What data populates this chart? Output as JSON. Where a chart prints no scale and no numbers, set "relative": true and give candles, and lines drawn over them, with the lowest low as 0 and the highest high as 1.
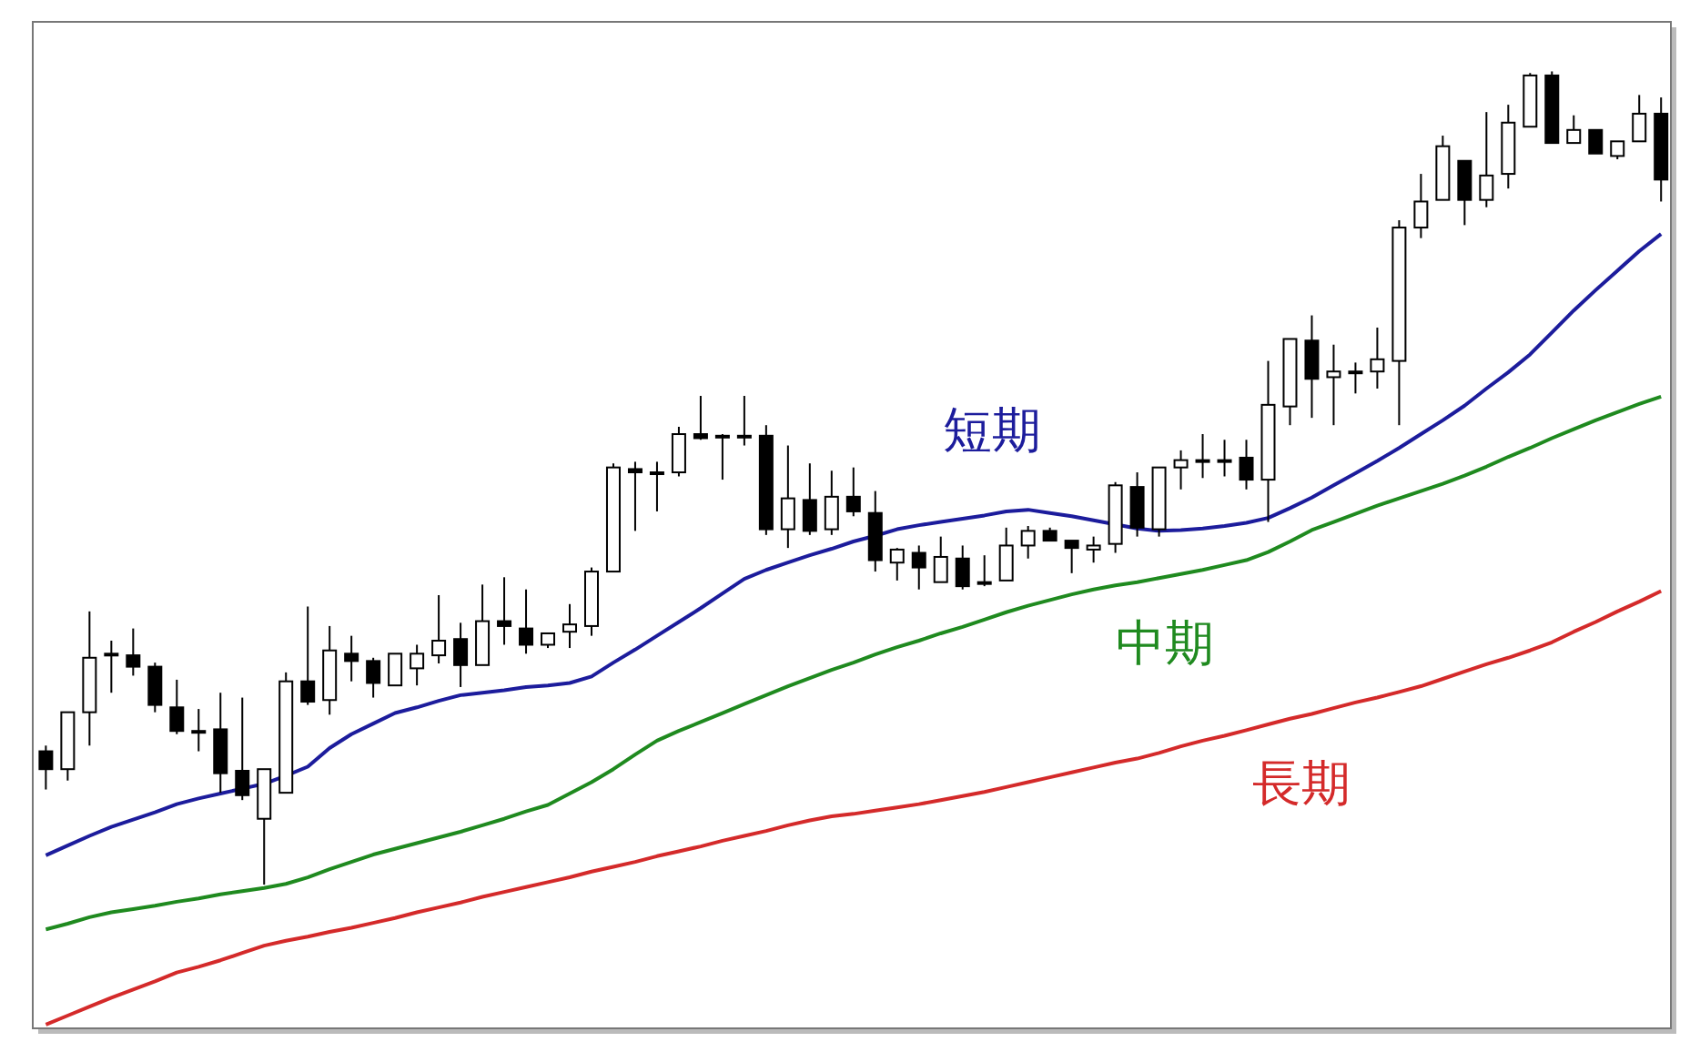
{
  "chart_data": {
    "type": "candlestick",
    "relative": true,
    "categories": [
      null,
      null,
      null,
      null,
      null,
      null,
      null,
      null,
      null,
      null,
      null,
      null,
      null,
      null,
      null,
      null,
      null,
      null,
      null,
      null,
      null,
      null,
      null,
      null,
      null,
      null,
      null,
      null,
      null,
      null,
      null,
      null,
      null,
      null,
      null,
      null,
      null,
      null,
      null,
      null,
      null,
      null,
      null,
      null,
      null,
      null,
      null,
      null,
      null,
      null,
      null,
      null,
      null,
      null,
      null,
      null,
      null,
      null,
      null,
      null,
      null,
      null,
      null,
      null,
      null,
      null,
      null,
      null,
      null,
      null,
      null,
      null,
      null,
      null,
      null
    ],
    "ohlc": [
      [
        0.164,
        0.171,
        0.117,
        0.142
      ],
      [
        0.142,
        0.212,
        0.128,
        0.212
      ],
      [
        0.212,
        0.336,
        0.171,
        0.279
      ],
      [
        0.282,
        0.3,
        0.236,
        0.284
      ],
      [
        0.282,
        0.315,
        0.257,
        0.268
      ],
      [
        0.268,
        0.273,
        0.212,
        0.221
      ],
      [
        0.218,
        0.252,
        0.185,
        0.189
      ],
      [
        0.189,
        0.216,
        0.164,
        0.189
      ],
      [
        0.191,
        0.236,
        0.113,
        0.137
      ],
      [
        0.14,
        0.23,
        0.104,
        0.11
      ],
      [
        0.081,
        0.142,
        0,
        0.142
      ],
      [
        0.113,
        0.261,
        0.113,
        0.25
      ],
      [
        0.25,
        0.342,
        0.221,
        0.225
      ],
      [
        0.227,
        0.318,
        0.209,
        0.288
      ],
      [
        0.284,
        0.306,
        0.25,
        0.275
      ],
      [
        0.275,
        0.279,
        0.23,
        0.248
      ],
      [
        0.245,
        0.284,
        0.245,
        0.284
      ],
      [
        0.266,
        0.295,
        0.245,
        0.284
      ],
      [
        0.282,
        0.356,
        0.272,
        0.3
      ],
      [
        0.302,
        0.322,
        0.243,
        0.27
      ],
      [
        0.27,
        0.369,
        0.27,
        0.324
      ],
      [
        0.324,
        0.378,
        0.295,
        0.318
      ],
      [
        0.315,
        0.363,
        0.284,
        0.295
      ],
      [
        0.295,
        0.309,
        0.291,
        0.309
      ],
      [
        0.311,
        0.345,
        0.291,
        0.32
      ],
      [
        0.318,
        0.39,
        0.306,
        0.385
      ],
      [
        0.385,
        0.518,
        0.385,
        0.513
      ],
      [
        0.511,
        0.52,
        0.435,
        0.507
      ],
      [
        0.507,
        0.52,
        0.459,
        0.507
      ],
      [
        0.507,
        0.563,
        0.502,
        0.554
      ],
      [
        0.554,
        0.601,
        0.547,
        0.549
      ],
      [
        0.552,
        0.554,
        0.498,
        0.552
      ],
      [
        0.552,
        0.601,
        0.54,
        0.552
      ],
      [
        0.552,
        0.565,
        0.43,
        0.437
      ],
      [
        0.437,
        0.54,
        0.414,
        0.475
      ],
      [
        0.473,
        0.518,
        0.43,
        0.435
      ],
      [
        0.437,
        0.509,
        0.43,
        0.477
      ],
      [
        0.477,
        0.513,
        0.453,
        0.459
      ],
      [
        0.457,
        0.484,
        0.385,
        0.399
      ],
      [
        0.396,
        0.414,
        0.374,
        0.412
      ],
      [
        0.408,
        0.417,
        0.363,
        0.39
      ],
      [
        0.372,
        0.428,
        0.372,
        0.403
      ],
      [
        0.401,
        0.417,
        0.363,
        0.367
      ],
      [
        0.372,
        0.405,
        0.367,
        0.372
      ],
      [
        0.374,
        0.439,
        0.374,
        0.417
      ],
      [
        0.417,
        0.441,
        0.401,
        0.435
      ],
      [
        0.435,
        0.439,
        0.423,
        0.423
      ],
      [
        0.423,
        0.423,
        0.383,
        0.414
      ],
      [
        0.412,
        0.428,
        0.396,
        0.417
      ],
      [
        0.419,
        0.495,
        0.408,
        0.491
      ],
      [
        0.489,
        0.507,
        0.428,
        0.439
      ],
      [
        0.437,
        0.513,
        0.428,
        0.513
      ],
      [
        0.513,
        0.534,
        0.486,
        0.522
      ],
      [
        0.522,
        0.554,
        0.5,
        0.522
      ],
      [
        0.522,
        0.547,
        0.502,
        0.522
      ],
      [
        0.525,
        0.547,
        0.486,
        0.498
      ],
      [
        0.498,
        0.644,
        0.446,
        0.59
      ],
      [
        0.588,
        0.671,
        0.565,
        0.671
      ],
      [
        0.669,
        0.7,
        0.574,
        0.622
      ],
      [
        0.624,
        0.664,
        0.565,
        0.631
      ],
      [
        0.631,
        0.642,
        0.604,
        0.631
      ],
      [
        0.631,
        0.685,
        0.61,
        0.646
      ],
      [
        0.644,
        0.817,
        0.565,
        0.808
      ],
      [
        0.808,
        0.874,
        0.795,
        0.84
      ],
      [
        0.842,
        0.921,
        0.842,
        0.908
      ],
      [
        0.89,
        0.89,
        0.811,
        0.842
      ],
      [
        0.842,
        0.95,
        0.833,
        0.872
      ],
      [
        0.874,
        0.959,
        0.856,
        0.937
      ],
      [
        0.932,
        0.998,
        0.932,
        0.995
      ],
      [
        0.995,
        1,
        0.912,
        0.912
      ],
      [
        0.912,
        0.946,
        0.912,
        0.928
      ],
      [
        0.928,
        0.928,
        0.899,
        0.899
      ],
      [
        0.896,
        0.914,
        0.892,
        0.914
      ],
      [
        0.914,
        0.971,
        0.914,
        0.948
      ],
      [
        0.948,
        0.968,
        0.84,
        0.867
      ]
    ],
    "series": [
      {
        "name": "短期",
        "type": "line",
        "color": "#1c1c9c",
        "values": [
          0.036,
          0.048,
          0.06,
          0.071,
          0.08,
          0.089,
          0.099,
          0.106,
          0.112,
          0.118,
          0.124,
          0.134,
          0.145,
          0.168,
          0.185,
          0.198,
          0.211,
          0.218,
          0.226,
          0.233,
          0.236,
          0.239,
          0.243,
          0.245,
          0.248,
          0.256,
          0.273,
          0.289,
          0.306,
          0.323,
          0.34,
          0.358,
          0.376,
          0.387,
          0.396,
          0.405,
          0.413,
          0.422,
          0.429,
          0.437,
          0.442,
          0.446,
          0.45,
          0.454,
          0.459,
          0.461,
          0.457,
          0.453,
          0.448,
          null,
          0.438,
          0.435,
          0.436,
          0.438,
          0.441,
          0.445,
          0.451,
          0.463,
          0.476,
          0.491,
          0.506,
          0.521,
          0.537,
          0.554,
          0.571,
          0.589,
          0.61,
          0.63,
          0.652,
          0.679,
          0.706,
          0.731,
          0.755,
          0.779,
          0.8
        ]
      },
      {
        "name": "中期",
        "type": "line",
        "color": "#1f8a1f",
        "values": [
          -0.055,
          -0.048,
          -0.04,
          -0.034,
          -0.03,
          -0.026,
          -0.021,
          -0.017,
          -0.012,
          -0.008,
          -0.004,
          0.001,
          0.009,
          0.019,
          0.028,
          0.037,
          0.044,
          0.051,
          0.058,
          0.065,
          0.073,
          0.081,
          0.09,
          0.098,
          0.112,
          0.126,
          0.142,
          0.16,
          0.177,
          0.189,
          0.2,
          0.211,
          0.222,
          0.233,
          0.244,
          0.254,
          0.264,
          0.273,
          0.283,
          0.292,
          0.3,
          0.309,
          0.317,
          0.326,
          0.335,
          0.343,
          0.35,
          0.357,
          0.363,
          0.368,
          0.372,
          0.377,
          0.382,
          0.387,
          0.393,
          0.399,
          0.409,
          0.422,
          0.436,
          0.446,
          0.456,
          0.466,
          0.475,
          0.484,
          0.493,
          0.503,
          0.514,
          0.526,
          0.537,
          0.549,
          0.56,
          0.571,
          0.581,
          0.591,
          0.6
        ]
      },
      {
        "name": "長期",
        "type": "line",
        "color": "#d42a2a",
        "values": [
          -0.172,
          -0.161,
          -0.15,
          -0.139,
          -0.129,
          -0.119,
          -0.108,
          -0.101,
          -0.093,
          -0.084,
          -0.075,
          -0.069,
          -0.064,
          -0.058,
          -0.053,
          -0.047,
          -0.041,
          -0.034,
          -0.028,
          -0.022,
          -0.015,
          -0.009,
          -0.003,
          0.003,
          0.009,
          0.016,
          0.022,
          0.028,
          0.035,
          0.041,
          0.047,
          0.054,
          0.06,
          0.066,
          0.073,
          0.079,
          0.084,
          0.087,
          0.091,
          0.095,
          0.099,
          0.104,
          0.109,
          0.114,
          0.12,
          0.126,
          0.132,
          0.138,
          0.144,
          0.15,
          0.155,
          0.162,
          0.17,
          0.177,
          0.183,
          0.19,
          0.197,
          0.204,
          0.21,
          0.217,
          0.224,
          0.23,
          0.237,
          0.244,
          0.253,
          0.262,
          0.271,
          0.279,
          0.288,
          0.298,
          0.311,
          0.323,
          0.336,
          0.348,
          0.361
        ]
      }
    ]
  }
}
